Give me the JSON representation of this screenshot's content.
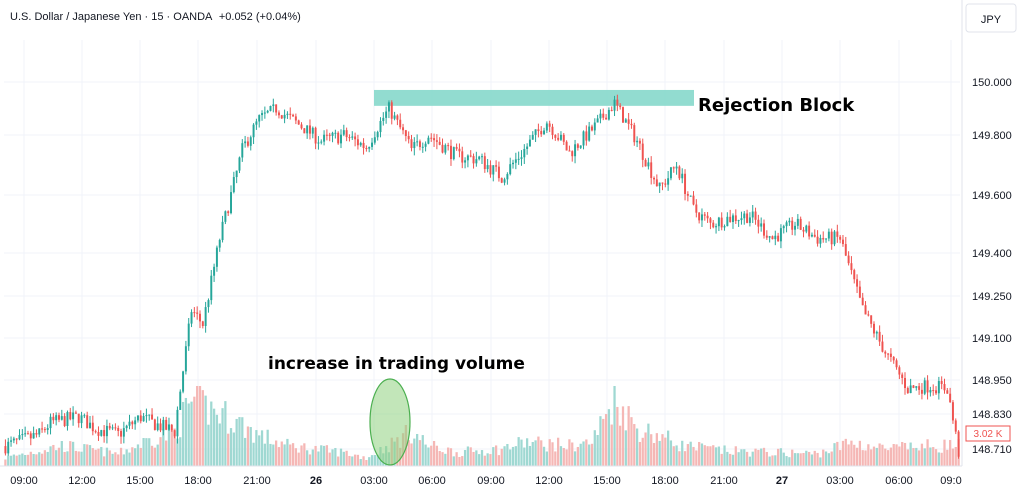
{
  "header": {
    "title": "U.S. Dollar / Japanese Yen · 15 · OANDA",
    "change": "+0.052 (+0.04%)"
  },
  "currency_badge": "JPY",
  "colors": {
    "up": "#26a69a",
    "down": "#ef5350",
    "up_volume": "#9fd8d2",
    "down_volume": "#f5b7b5",
    "zone_fill": "#7fd6c8",
    "ellipse_fill": "#8fd27f",
    "ellipse_stroke": "#4caf50",
    "grid": "#f0f3fa",
    "axis_text": "#131722",
    "volume_badge": "#ef5350"
  },
  "chart_data": {
    "type": "candlestick",
    "title": "U.S. Dollar / Japanese Yen · 15 · OANDA",
    "subtitle": "+0.052 (+0.04%)",
    "y_axis": {
      "unit": "JPY",
      "tick_labels": [
        "150.000",
        "149.800",
        "149.600",
        "149.400",
        "149.250",
        "149.100",
        "148.950",
        "148.830",
        "148.710"
      ],
      "range": [
        148.69,
        150.08
      ]
    },
    "x_axis": {
      "tick_labels": [
        "09:00",
        "12:00",
        "15:00",
        "18:00",
        "21:00",
        "26",
        "03:00",
        "06:00",
        "09:00",
        "12:00",
        "15:00",
        "18:00",
        "21:00",
        "27",
        "03:00",
        "06:00",
        "09:0"
      ],
      "bold_ticks": [
        "26",
        "27"
      ]
    },
    "close_path": [
      [
        0,
        148.72
      ],
      [
        12,
        148.76
      ],
      [
        16,
        148.8
      ],
      [
        26,
        148.82
      ],
      [
        32,
        148.78
      ],
      [
        40,
        148.76
      ],
      [
        48,
        148.82
      ],
      [
        52,
        148.8
      ],
      [
        60,
        148.77
      ],
      [
        66,
        149.2
      ],
      [
        70,
        149.15
      ],
      [
        76,
        149.45
      ],
      [
        84,
        149.75
      ],
      [
        90,
        149.86
      ],
      [
        96,
        149.9
      ],
      [
        104,
        149.84
      ],
      [
        112,
        149.78
      ],
      [
        120,
        149.8
      ],
      [
        128,
        149.76
      ],
      [
        136,
        149.9
      ],
      [
        144,
        149.75
      ],
      [
        150,
        149.8
      ],
      [
        160,
        149.73
      ],
      [
        168,
        149.72
      ],
      [
        176,
        149.66
      ],
      [
        184,
        149.75
      ],
      [
        192,
        149.85
      ],
      [
        200,
        149.74
      ],
      [
        208,
        149.82
      ],
      [
        216,
        149.92
      ],
      [
        224,
        149.78
      ],
      [
        232,
        149.62
      ],
      [
        238,
        149.7
      ],
      [
        244,
        149.55
      ],
      [
        250,
        149.5
      ],
      [
        256,
        149.52
      ],
      [
        264,
        149.53
      ],
      [
        272,
        149.45
      ],
      [
        280,
        149.5
      ],
      [
        288,
        149.45
      ],
      [
        296,
        149.45
      ],
      [
        304,
        149.2
      ],
      [
        312,
        149.05
      ],
      [
        320,
        148.92
      ],
      [
        328,
        148.93
      ],
      [
        334,
        148.92
      ],
      [
        338,
        148.7
      ]
    ],
    "volume_path": [
      [
        0,
        0.12
      ],
      [
        20,
        0.3
      ],
      [
        40,
        0.18
      ],
      [
        52,
        0.4
      ],
      [
        60,
        0.5
      ],
      [
        66,
        0.95
      ],
      [
        80,
        0.7
      ],
      [
        90,
        0.45
      ],
      [
        100,
        0.3
      ],
      [
        120,
        0.2
      ],
      [
        128,
        0.12
      ],
      [
        136,
        0.3
      ],
      [
        144,
        0.5
      ],
      [
        150,
        0.3
      ],
      [
        160,
        0.2
      ],
      [
        176,
        0.25
      ],
      [
        184,
        0.35
      ],
      [
        200,
        0.3
      ],
      [
        208,
        0.35
      ],
      [
        216,
        1.0
      ],
      [
        224,
        0.55
      ],
      [
        232,
        0.45
      ],
      [
        240,
        0.3
      ],
      [
        256,
        0.22
      ],
      [
        272,
        0.2
      ],
      [
        288,
        0.18
      ],
      [
        300,
        0.35
      ],
      [
        312,
        0.25
      ],
      [
        330,
        0.3
      ],
      [
        338,
        0.3
      ]
    ],
    "volume_label": "3.02 K",
    "annotations": {
      "zone_label": "Rejection Block",
      "zone_range": [
        149.91,
        149.97
      ],
      "volume_label": "increase in trading volume"
    }
  }
}
